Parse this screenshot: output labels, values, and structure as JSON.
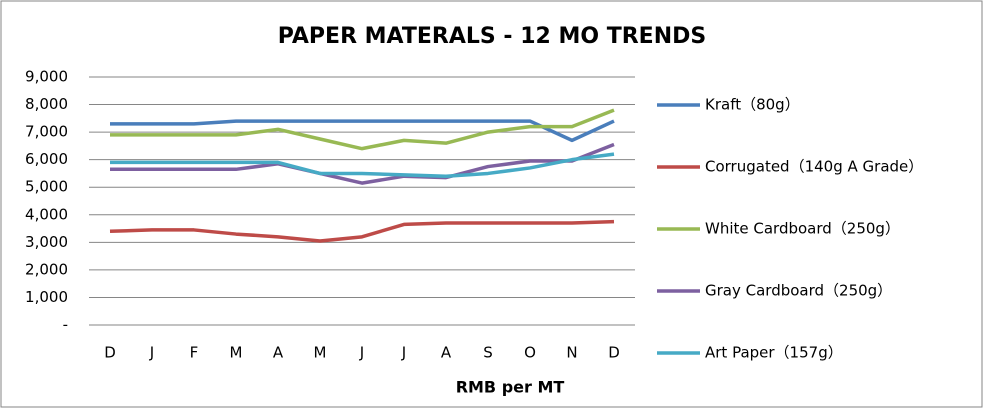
{
  "chart_data": {
    "type": "line",
    "title": "PAPER MATERALS - 12 MO TRENDS",
    "x_label": "RMB per MT",
    "categories": [
      "D",
      "J",
      "F",
      "M",
      "A",
      "M",
      "J",
      "J",
      "A",
      "S",
      "O",
      "N",
      "D"
    ],
    "series": [
      {
        "name": "Kraft（80g）",
        "color": "#4a7ebb",
        "values": [
          7300,
          7300,
          7300,
          7400,
          7400,
          7400,
          7400,
          7400,
          7400,
          7400,
          7400,
          6700,
          7400
        ]
      },
      {
        "name": "Corrugated（140g A Grade）",
        "color": "#be4b48",
        "values": [
          3400,
          3450,
          3450,
          3300,
          3200,
          3050,
          3200,
          3650,
          3700,
          3700,
          3700,
          3700,
          3750
        ]
      },
      {
        "name": "White Cardboard（250g）",
        "color": "#98b954",
        "values": [
          6900,
          6900,
          6900,
          6900,
          7100,
          6750,
          6400,
          6700,
          6600,
          7000,
          7200,
          7200,
          7800
        ]
      },
      {
        "name": "Gray Cardboard（250g）",
        "color": "#7d60a0",
        "values": [
          5650,
          5650,
          5650,
          5650,
          5850,
          5500,
          5150,
          5400,
          5350,
          5750,
          5950,
          5950,
          6550
        ]
      },
      {
        "name": "Art Paper（157g）",
        "color": "#46aac5",
        "values": [
          5900,
          5900,
          5900,
          5900,
          5900,
          5500,
          5500,
          5450,
          5400,
          5500,
          5700,
          6000,
          6200
        ]
      }
    ],
    "ylim": [
      0,
      9000
    ],
    "yticks": [
      {
        "value": 0,
        "label": "-"
      },
      {
        "value": 1000,
        "label": "1,000"
      },
      {
        "value": 2000,
        "label": "2,000"
      },
      {
        "value": 3000,
        "label": "3,000"
      },
      {
        "value": 4000,
        "label": "4,000"
      },
      {
        "value": 5000,
        "label": "5,000"
      },
      {
        "value": 6000,
        "label": "6,000"
      },
      {
        "value": 7000,
        "label": "7,000"
      },
      {
        "value": 8000,
        "label": "8,000"
      },
      {
        "value": 9000,
        "label": "9,000"
      }
    ],
    "grid": true,
    "legend": "right"
  }
}
